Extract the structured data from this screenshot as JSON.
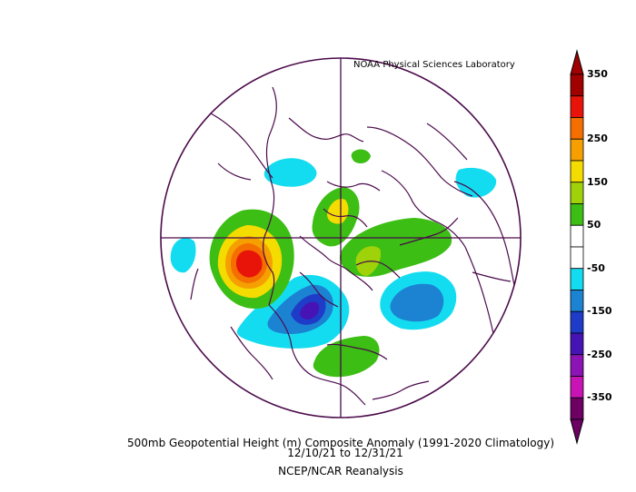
{
  "credit": "NOAA Physical Sciences Laboratory",
  "caption": {
    "line1": "500mb Geopotential Height (m) Composite Anomaly (1991-2020 Climatology)",
    "line2": "12/10/21   to 12/31/21",
    "line3": "NCEP/NCAR Reanalysis"
  },
  "colorbar": {
    "labels": [
      "350",
      "250",
      "150",
      "50",
      "-50",
      "-150",
      "-250",
      "-350"
    ],
    "colors": [
      "#a00000",
      "#e8140a",
      "#f56e00",
      "#f5a000",
      "#f5dc00",
      "#a0d20a",
      "#3cbe14",
      "#ffffff",
      "#ffffff",
      "#14dcf0",
      "#1c82d2",
      "#1e3cc8",
      "#4614b4",
      "#8c14b4",
      "#c814b4",
      "#6e0064"
    ]
  },
  "colors": {
    "coastline": "#4a0a4a",
    "positive_strong": "#e8140a",
    "negative_strong": "#1e3cc8"
  }
}
